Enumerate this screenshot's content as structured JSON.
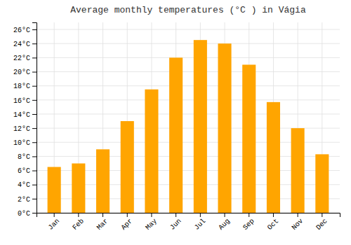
{
  "chart_data": {
    "type": "bar",
    "title": "Average monthly temperatures (°C ) in Vágia",
    "categories": [
      "Jan",
      "Feb",
      "Mar",
      "Apr",
      "May",
      "Jun",
      "Jul",
      "Aug",
      "Sep",
      "Oct",
      "Nov",
      "Dec"
    ],
    "values": [
      6.5,
      7.0,
      9.0,
      13.0,
      17.5,
      22.0,
      24.5,
      24.0,
      21.0,
      15.7,
      12.0,
      8.3
    ],
    "color": "#FFA500",
    "ylim": [
      0,
      27
    ],
    "yticks": [
      {
        "value": 0,
        "label": "0°C"
      },
      {
        "value": 2,
        "label": "2°C"
      },
      {
        "value": 4,
        "label": "4°C"
      },
      {
        "value": 6,
        "label": "6°C"
      },
      {
        "value": 8,
        "label": "8°C"
      },
      {
        "value": 10,
        "label": "10°C"
      },
      {
        "value": 12,
        "label": "12°C"
      },
      {
        "value": 14,
        "label": "14°C"
      },
      {
        "value": 16,
        "label": "16°C"
      },
      {
        "value": 18,
        "label": "18°C"
      },
      {
        "value": 20,
        "label": "20°C"
      },
      {
        "value": 22,
        "label": "22°C"
      },
      {
        "value": 24,
        "label": "24°C"
      },
      {
        "value": 26,
        "label": "26°C"
      }
    ],
    "grid": true
  }
}
